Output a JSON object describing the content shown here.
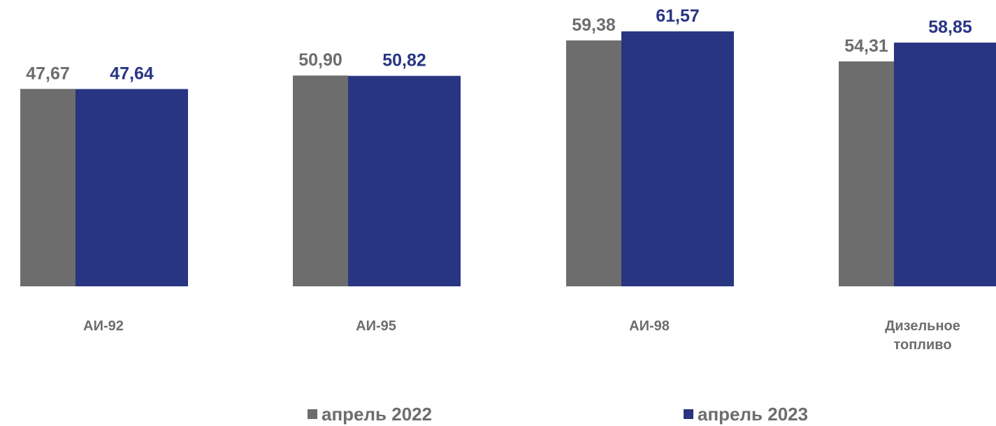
{
  "chart_data": {
    "type": "bar",
    "categories": [
      [
        "АИ-92"
      ],
      [
        "АИ-95"
      ],
      [
        "АИ-98"
      ],
      [
        "Дизельное",
        "топливо"
      ]
    ],
    "series": [
      {
        "name": "апрель 2022",
        "color": "#6d6d6d",
        "values": [
          47.67,
          50.9,
          59.38,
          54.31
        ],
        "labels": [
          "47,67",
          "50,90",
          "59,38",
          "54,31"
        ]
      },
      {
        "name": "апрель 2023",
        "color": "#283583",
        "values": [
          47.64,
          50.82,
          61.57,
          58.85
        ],
        "labels": [
          "47,64",
          "50,82",
          "61,57",
          "58,85"
        ]
      }
    ],
    "legend_position": "bottom",
    "grid": false
  }
}
